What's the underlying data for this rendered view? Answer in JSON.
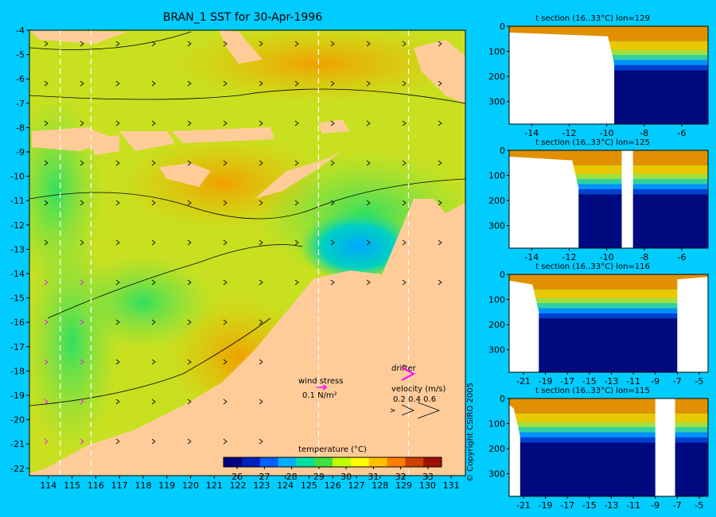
{
  "title": "BRAN_1 SST for 30-Apr-1996",
  "copyright": "© Copyright CSIRO 2005",
  "chart_data": [
    {
      "type": "heatmap",
      "xlabel": "",
      "ylabel": "",
      "xticks": [
        114,
        115,
        116,
        117,
        118,
        119,
        120,
        121,
        122,
        123,
        124,
        125,
        126,
        127,
        128,
        129,
        130,
        131
      ],
      "yticks": [
        -4,
        -5,
        -6,
        -7,
        -8,
        -9,
        -10,
        -11,
        -12,
        -13,
        -14,
        -15,
        -16,
        -17,
        -18,
        -19,
        -20,
        -21,
        -22
      ],
      "xlim": [
        113.2,
        131.6
      ],
      "ylim": [
        -22.3,
        -4
      ],
      "section_lines_lon": [
        114.5,
        115.8,
        125.4,
        129.2
      ],
      "colorbar": {
        "label": "temperature (°C)",
        "ticks": [
          26,
          27,
          28,
          29,
          30,
          31,
          32,
          33
        ],
        "range": [
          25.5,
          33.5
        ],
        "colors": [
          "#000080",
          "#0020c0",
          "#0060ff",
          "#00b0ff",
          "#00e0a0",
          "#40e040",
          "#c0ff00",
          "#ffff00",
          "#ffc000",
          "#ff8000",
          "#d04000",
          "#a01000"
        ]
      },
      "wind_legend": {
        "label": "wind stress",
        "value": "0.1 N/m²"
      },
      "drifter_legend": {
        "label": "drifter"
      },
      "velocity_legend": {
        "label": "velocity (m/s)",
        "values": "0.2 0.4 0.6"
      }
    },
    {
      "type": "heatmap",
      "title": "t section (16..33°C) lon=129",
      "xticks": [
        -14,
        -12,
        -10,
        -8,
        -6
      ],
      "yticks": [
        0,
        100,
        200,
        300
      ],
      "xlim": [
        -15.2,
        -4.6
      ],
      "ylim": [
        390,
        0
      ],
      "land_until_x": -9.6
    },
    {
      "type": "heatmap",
      "title": "t section (16..33°C) lon=125",
      "xticks": [
        -14,
        -12,
        -10,
        -8,
        -6
      ],
      "yticks": [
        0,
        100,
        200,
        300
      ],
      "xlim": [
        -15.2,
        -4.6
      ],
      "ylim": [
        390,
        0
      ],
      "land_until_x": -11.5,
      "gap_x": [
        -9.2,
        -8.6
      ]
    },
    {
      "type": "heatmap",
      "title": "t section (16..33°C) lon=116",
      "xticks": [
        -21,
        -19,
        -17,
        -15,
        -13,
        -11,
        -9,
        -7,
        -5
      ],
      "yticks": [
        0,
        100,
        200,
        300
      ],
      "xlim": [
        -22.3,
        -4.2
      ],
      "ylim": [
        390,
        0
      ],
      "land_until_x": -19.6,
      "land_after_x": -7.0
    },
    {
      "type": "heatmap",
      "title": "t section (16..33°C) lon=115",
      "xticks": [
        -21,
        -19,
        -17,
        -15,
        -13,
        -11,
        -9,
        -7,
        -5
      ],
      "yticks": [
        0,
        100,
        200,
        300
      ],
      "xlim": [
        -22.3,
        -4.2
      ],
      "ylim": [
        390,
        0
      ],
      "land_until_x": -21.3,
      "gap_x": [
        -9.0,
        -7.2
      ]
    }
  ]
}
